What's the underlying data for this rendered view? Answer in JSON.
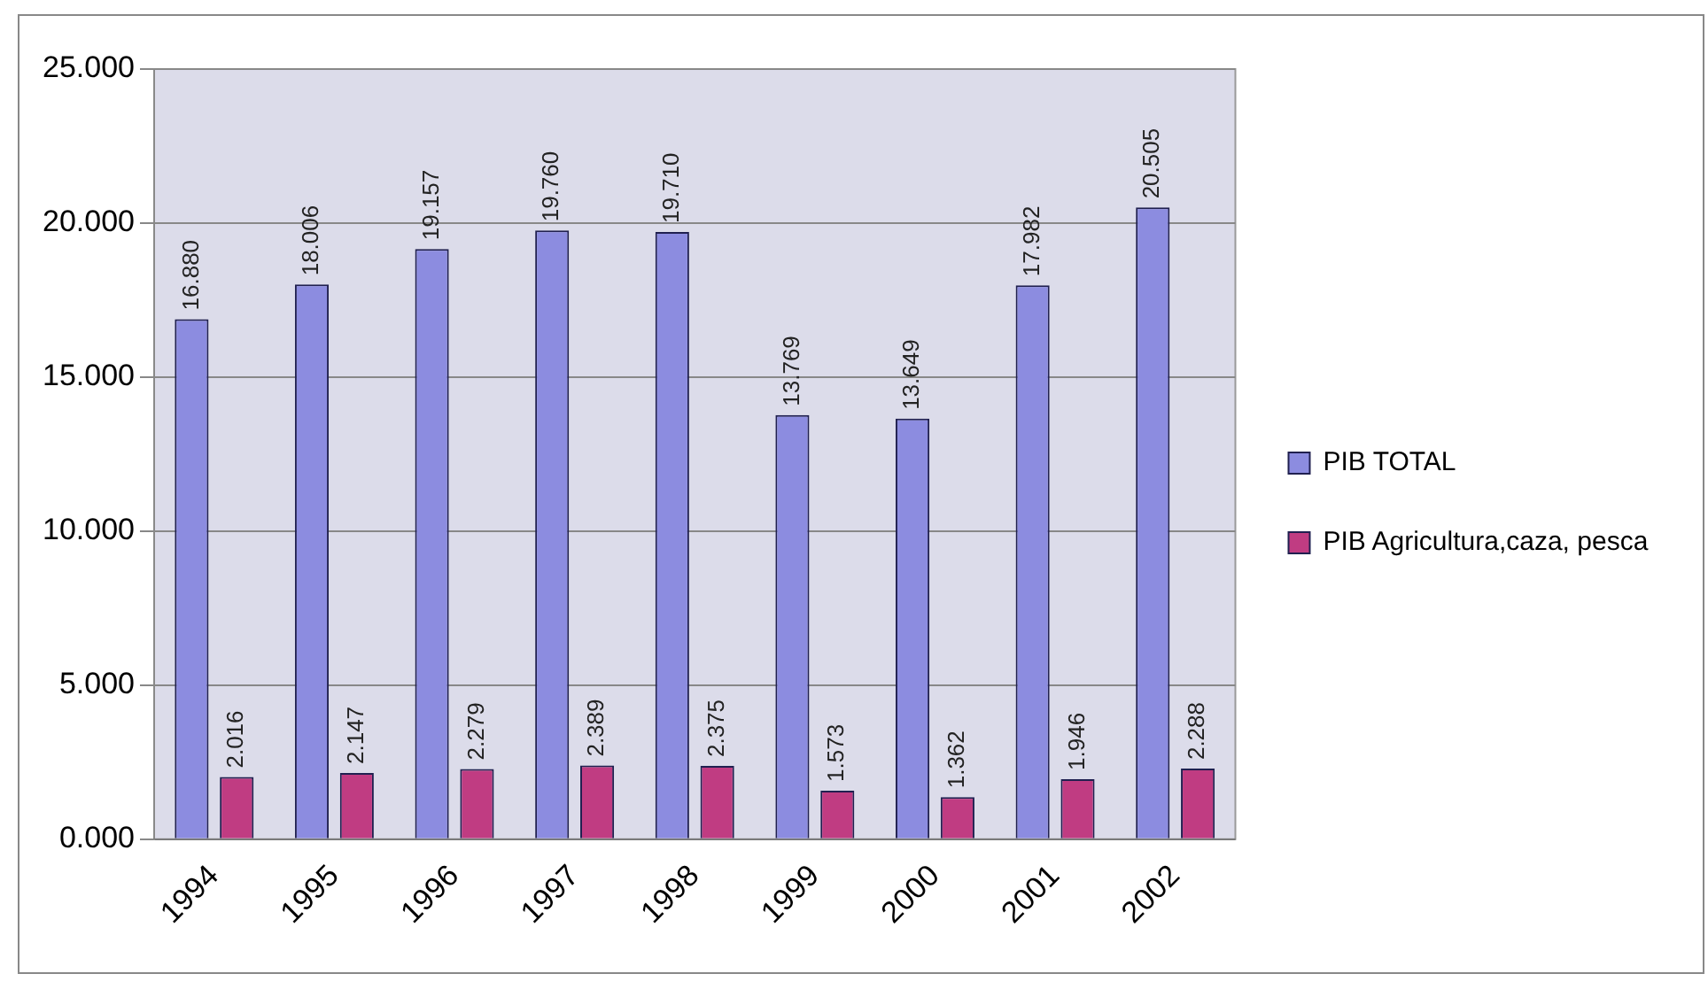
{
  "chart_data": {
    "type": "bar",
    "categories": [
      "1994",
      "1995",
      "1996",
      "1997",
      "1998",
      "1999",
      "2000",
      "2001",
      "2002"
    ],
    "series": [
      {
        "name": "PIB TOTAL",
        "color": "#8c8ce0",
        "values": [
          16.88,
          18.006,
          19.157,
          19.76,
          19.71,
          13.769,
          13.649,
          17.982,
          20.505
        ],
        "value_labels": [
          "16.880",
          "18.006",
          "19.157",
          "19.760",
          "19.710",
          "13.769",
          "13.649",
          "17.982",
          "20.505"
        ]
      },
      {
        "name": "PIB Agricultura,caza, pesca",
        "color": "#c03c82",
        "values": [
          2.016,
          2.147,
          2.279,
          2.389,
          2.375,
          1.573,
          1.362,
          1.946,
          2.288
        ],
        "value_labels": [
          "2.016",
          "2.147",
          "2.279",
          "2.389",
          "2.375",
          "1.573",
          "1.362",
          "1.946",
          "2.288"
        ]
      }
    ],
    "ylim": [
      0,
      25
    ],
    "yticks": [
      {
        "value": 0,
        "label": "0.000"
      },
      {
        "value": 5,
        "label": "5.000"
      },
      {
        "value": 10,
        "label": "10.000"
      },
      {
        "value": 15,
        "label": "15.000"
      },
      {
        "value": 20,
        "label": "20.000"
      },
      {
        "value": 25,
        "label": "25.000"
      }
    ],
    "grid": "y",
    "legend": "right"
  }
}
